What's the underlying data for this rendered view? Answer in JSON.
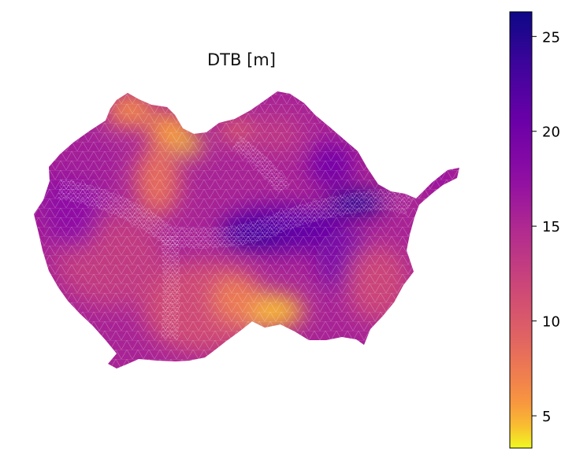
{
  "chart_data": {
    "type": "heatmap",
    "title": "DTB [m]",
    "xlabel": "",
    "ylabel": "",
    "colormap": "plasma",
    "colorbar": {
      "ticks": [
        5,
        10,
        15,
        20,
        25
      ],
      "tick_labels": [
        "5",
        "10",
        "15",
        "20",
        "25"
      ],
      "vmin": 3.3,
      "vmax": 26.3
    },
    "grid": false,
    "axes_visible": false,
    "mesh": "triangulated",
    "zones": [
      {
        "value": 6.5
      },
      {
        "value": 5.5
      },
      {
        "value": 4.0
      },
      {
        "value": 9.5
      },
      {
        "value": 8.5
      },
      {
        "value": 11.5
      },
      {
        "value": 13.0
      },
      {
        "value": 17.5
      },
      {
        "value": 16.0
      },
      {
        "value": 21.0
      },
      {
        "value": 23.5
      },
      {
        "value": 25.0
      },
      {
        "value": 19.0
      },
      {
        "value": 12.0
      }
    ]
  }
}
